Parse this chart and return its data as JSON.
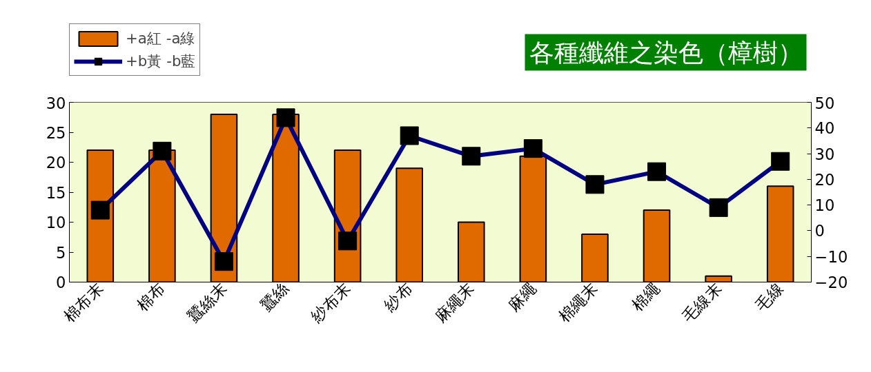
{
  "chart_data": {
    "type": "bar",
    "title": "各種纖維之染色（樟樹）",
    "categories": [
      "棉布末",
      "棉布",
      "蠶絲末",
      "蠶絲",
      "紗布末",
      "紗布",
      "麻繩末",
      "麻繩",
      "棉繩末",
      "棉繩",
      "毛線末",
      "毛線"
    ],
    "series": [
      {
        "name": "+a紅 -a綠",
        "color": "#e06a00",
        "values": [
          22,
          22,
          28,
          28,
          22,
          19,
          10,
          21,
          8,
          12,
          1,
          16
        ]
      },
      {
        "name": "+b黃 -b藍",
        "type": "line",
        "axis": "y2",
        "color": "#000080",
        "values": [
          8,
          31,
          -12,
          44,
          -4,
          37,
          29,
          32,
          18,
          23,
          9,
          27
        ]
      }
    ],
    "ylim": [
      0,
      30
    ],
    "yticks": [
      0,
      5,
      10,
      15,
      20,
      25,
      30
    ],
    "y2lim": [
      -20,
      50
    ],
    "y2ticks": [
      -20,
      -10,
      0,
      10,
      20,
      30,
      40,
      50
    ],
    "legend": "top left",
    "marker": "square",
    "grid": false
  }
}
